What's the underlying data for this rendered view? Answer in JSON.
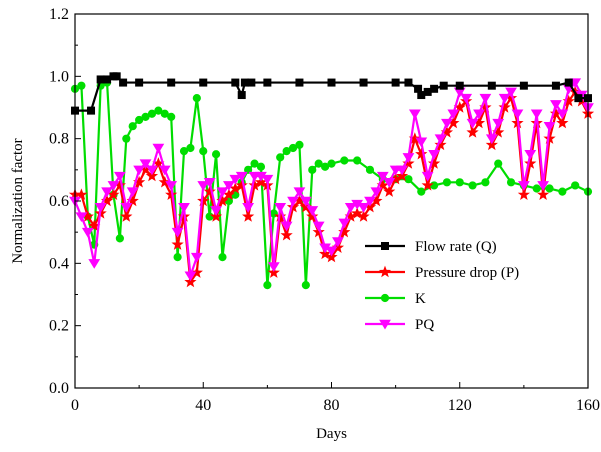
{
  "chart_data": {
    "type": "line",
    "xlabel": "Days",
    "ylabel": "Normalization factor",
    "xlim": [
      0,
      160
    ],
    "ylim": [
      0.0,
      1.2
    ],
    "xticks": [
      0,
      40,
      80,
      120,
      160
    ],
    "yticks": [
      0.0,
      0.2,
      0.4,
      0.6,
      0.8,
      1.0,
      1.2
    ],
    "xtick_labels": [
      "0",
      "40",
      "80",
      "120",
      "160"
    ],
    "ytick_labels": [
      "0.0",
      "0.2",
      "0.4",
      "0.6",
      "0.8",
      "1.0",
      "1.2"
    ],
    "grid": false,
    "legend_position": "center-right",
    "series": [
      {
        "name": "Flow rate (Q)",
        "color": "#000000",
        "marker": "square",
        "x": [
          0,
          5,
          8,
          10,
          12,
          13,
          15,
          20,
          30,
          40,
          50,
          52,
          53,
          55,
          60,
          70,
          80,
          90,
          100,
          104,
          107,
          108,
          110,
          112,
          115,
          120,
          130,
          140,
          150,
          154,
          157,
          160
        ],
        "y": [
          0.89,
          0.89,
          0.99,
          0.99,
          1.0,
          1.0,
          0.98,
          0.98,
          0.98,
          0.98,
          0.98,
          0.94,
          0.98,
          0.98,
          0.98,
          0.98,
          0.98,
          0.98,
          0.98,
          0.98,
          0.96,
          0.94,
          0.95,
          0.96,
          0.97,
          0.97,
          0.97,
          0.97,
          0.97,
          0.98,
          0.93,
          0.93
        ]
      },
      {
        "name": "Pressure drop (P)",
        "color": "#ff0000",
        "marker": "star",
        "x": [
          0,
          2,
          4,
          6,
          8,
          10,
          12,
          14,
          16,
          18,
          20,
          22,
          24,
          26,
          28,
          30,
          32,
          34,
          36,
          38,
          40,
          42,
          44,
          46,
          48,
          50,
          52,
          54,
          56,
          58,
          60,
          62,
          64,
          66,
          68,
          70,
          72,
          74,
          76,
          78,
          80,
          82,
          84,
          86,
          88,
          90,
          92,
          94,
          96,
          98,
          100,
          102,
          104,
          106,
          108,
          110,
          112,
          114,
          116,
          118,
          120,
          122,
          124,
          126,
          128,
          130,
          132,
          134,
          136,
          138,
          140,
          142,
          144,
          146,
          148,
          150,
          152,
          154,
          156,
          158,
          160
        ],
        "y": [
          0.62,
          0.62,
          0.55,
          0.52,
          0.56,
          0.6,
          0.62,
          0.65,
          0.55,
          0.6,
          0.66,
          0.7,
          0.68,
          0.72,
          0.66,
          0.62,
          0.46,
          0.55,
          0.34,
          0.37,
          0.6,
          0.63,
          0.55,
          0.6,
          0.62,
          0.64,
          0.65,
          0.55,
          0.65,
          0.66,
          0.65,
          0.37,
          0.55,
          0.49,
          0.58,
          0.6,
          0.58,
          0.55,
          0.5,
          0.43,
          0.42,
          0.45,
          0.5,
          0.55,
          0.56,
          0.55,
          0.58,
          0.6,
          0.65,
          0.63,
          0.67,
          0.68,
          0.72,
          0.8,
          0.75,
          0.65,
          0.72,
          0.78,
          0.82,
          0.85,
          0.9,
          0.92,
          0.82,
          0.85,
          0.9,
          0.78,
          0.82,
          0.9,
          0.93,
          0.85,
          0.62,
          0.72,
          0.85,
          0.62,
          0.8,
          0.88,
          0.85,
          0.92,
          0.95,
          0.92,
          0.88
        ]
      },
      {
        "name": "K",
        "color": "#00dd00",
        "marker": "circle",
        "x": [
          0,
          2,
          4,
          6,
          8,
          10,
          12,
          14,
          16,
          18,
          20,
          22,
          24,
          26,
          28,
          30,
          32,
          34,
          36,
          38,
          40,
          42,
          44,
          46,
          48,
          50,
          52,
          54,
          56,
          58,
          60,
          62,
          64,
          66,
          68,
          70,
          72,
          74,
          76,
          78,
          80,
          84,
          88,
          92,
          96,
          100,
          104,
          108,
          112,
          116,
          120,
          124,
          128,
          132,
          136,
          140,
          144,
          148,
          152,
          156,
          160
        ],
        "y": [
          0.96,
          0.97,
          0.55,
          0.46,
          0.97,
          0.98,
          0.62,
          0.48,
          0.8,
          0.84,
          0.86,
          0.87,
          0.88,
          0.89,
          0.88,
          0.87,
          0.42,
          0.76,
          0.77,
          0.93,
          0.76,
          0.55,
          0.75,
          0.42,
          0.6,
          0.62,
          0.66,
          0.7,
          0.72,
          0.71,
          0.33,
          0.56,
          0.74,
          0.76,
          0.77,
          0.78,
          0.33,
          0.7,
          0.72,
          0.71,
          0.72,
          0.73,
          0.73,
          0.7,
          0.67,
          0.67,
          0.67,
          0.63,
          0.65,
          0.66,
          0.66,
          0.65,
          0.66,
          0.72,
          0.66,
          0.65,
          0.64,
          0.64,
          0.63,
          0.65,
          0.63
        ]
      },
      {
        "name": "PQ",
        "color": "#ff00ff",
        "marker": "triangle-down",
        "x": [
          0,
          2,
          4,
          6,
          8,
          10,
          12,
          14,
          16,
          18,
          20,
          22,
          24,
          26,
          28,
          30,
          32,
          34,
          36,
          38,
          40,
          42,
          44,
          46,
          48,
          50,
          52,
          54,
          56,
          58,
          60,
          62,
          64,
          66,
          68,
          70,
          72,
          74,
          76,
          78,
          80,
          82,
          84,
          86,
          88,
          90,
          92,
          94,
          96,
          98,
          100,
          102,
          104,
          106,
          108,
          110,
          112,
          114,
          116,
          118,
          120,
          122,
          124,
          126,
          128,
          130,
          132,
          134,
          136,
          138,
          140,
          142,
          144,
          146,
          148,
          150,
          152,
          154,
          156,
          158,
          160
        ],
        "y": [
          0.6,
          0.55,
          0.5,
          0.4,
          0.58,
          0.63,
          0.65,
          0.68,
          0.58,
          0.63,
          0.7,
          0.72,
          0.7,
          0.77,
          0.7,
          0.65,
          0.5,
          0.58,
          0.36,
          0.42,
          0.65,
          0.66,
          0.57,
          0.63,
          0.65,
          0.67,
          0.68,
          0.58,
          0.68,
          0.68,
          0.67,
          0.39,
          0.58,
          0.52,
          0.6,
          0.63,
          0.6,
          0.57,
          0.52,
          0.45,
          0.44,
          0.47,
          0.53,
          0.58,
          0.59,
          0.58,
          0.6,
          0.63,
          0.68,
          0.66,
          0.7,
          0.7,
          0.74,
          0.88,
          0.79,
          0.68,
          0.75,
          0.8,
          0.85,
          0.88,
          0.95,
          0.93,
          0.85,
          0.88,
          0.93,
          0.8,
          0.85,
          0.93,
          0.95,
          0.88,
          0.65,
          0.75,
          0.88,
          0.65,
          0.84,
          0.91,
          0.88,
          0.96,
          0.98,
          0.94,
          0.9
        ]
      }
    ]
  }
}
